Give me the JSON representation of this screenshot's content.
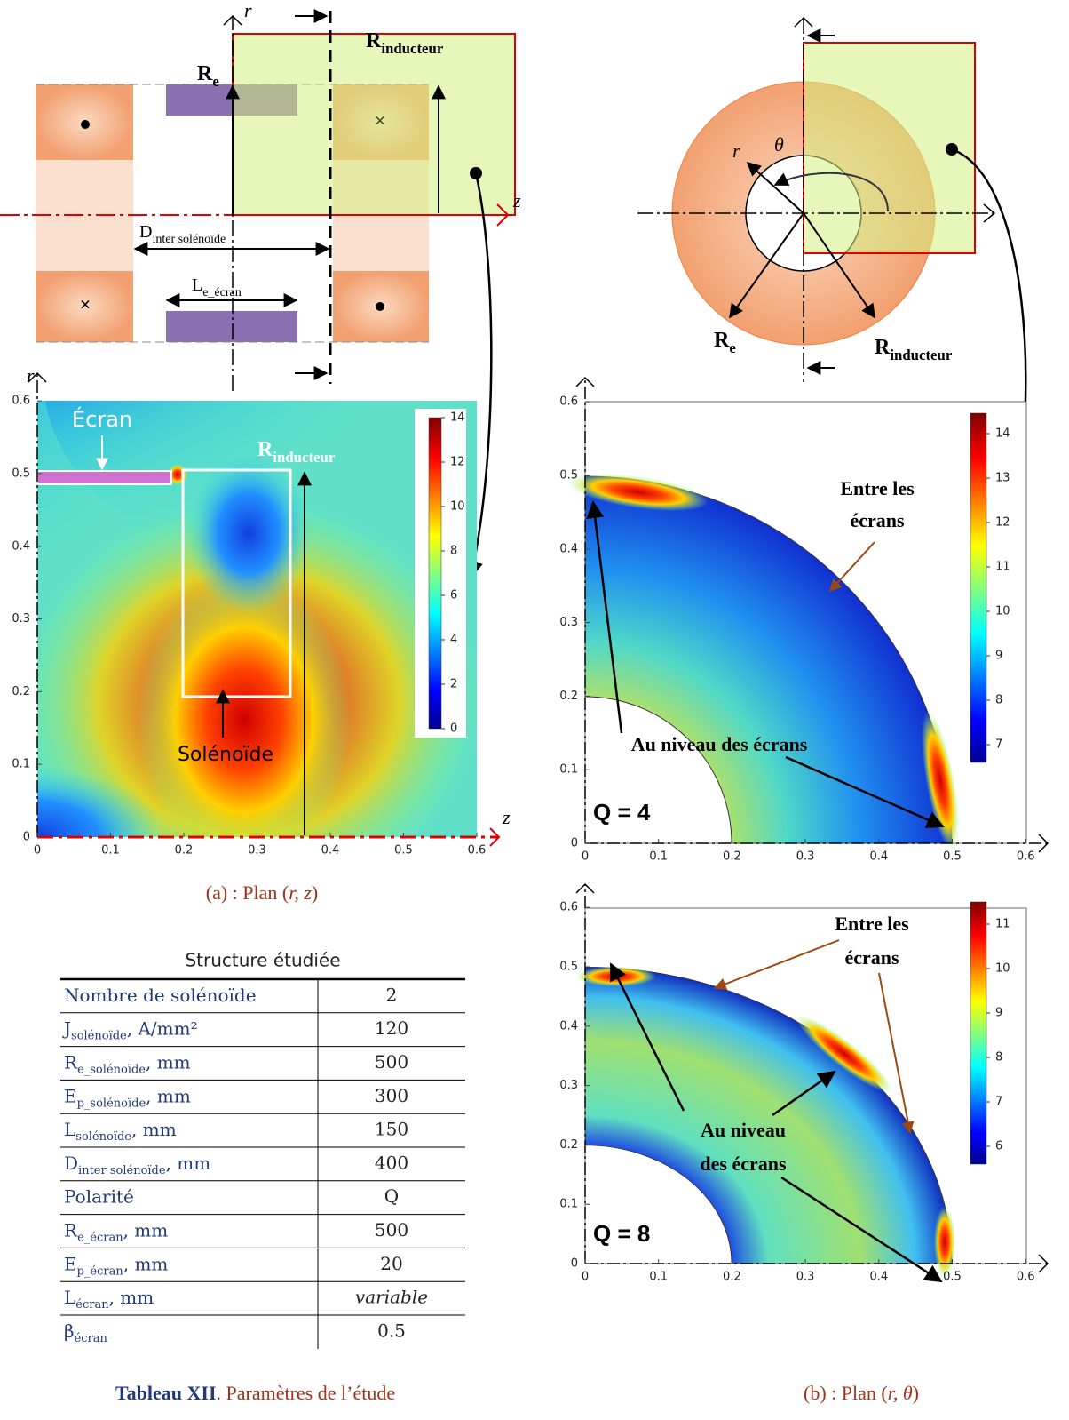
{
  "schema_rz": {
    "axis_r": "r",
    "axis_z": "z",
    "r_e": {
      "main": "R",
      "sub": "e"
    },
    "r_inducteur": {
      "main": "R",
      "sub": "inducteur"
    },
    "d_inter": {
      "main": "D",
      "sub": "inter solénoïde"
    },
    "l_ecran": {
      "main": "L",
      "sub": "e_écran"
    }
  },
  "schema_rtheta": {
    "axis_r": "r",
    "axis_theta": "θ",
    "r_e": {
      "main": "R",
      "sub": "e"
    },
    "r_inducteur": {
      "main": "R",
      "sub": "inducteur"
    }
  },
  "plot_rz": {
    "axis_r": "r",
    "axis_z": "z",
    "xticks": [
      0,
      0.1,
      0.2,
      0.3,
      0.4,
      0.5,
      0.6
    ],
    "yticks": [
      0,
      0.1,
      0.2,
      0.3,
      0.4,
      0.5,
      0.6
    ],
    "colorbar_ticks": [
      0,
      2,
      4,
      6,
      8,
      10,
      12,
      14
    ],
    "ecran": "Écran",
    "r_inducteur": {
      "main": "R",
      "sub": "inducteur"
    },
    "solenoide": "Solénoïde",
    "caption": {
      "pre": "(a) : Plan (",
      "it": "r, z",
      "post": ")"
    }
  },
  "plot_q4": {
    "label": "Q = 4",
    "xticks": [
      0,
      0.1,
      0.2,
      0.3,
      0.4,
      0.5,
      0.6
    ],
    "yticks": [
      0,
      0.1,
      0.2,
      0.3,
      0.4,
      0.5,
      0.6
    ],
    "colorbar_ticks": [
      7,
      8,
      9,
      10,
      11,
      12,
      13,
      14
    ],
    "entre": [
      "Entre les",
      "écrans"
    ],
    "niveau": [
      "Au niveau des écrans"
    ]
  },
  "plot_q8": {
    "label": "Q = 8",
    "xticks": [
      0,
      0.1,
      0.2,
      0.3,
      0.4,
      0.5,
      0.6
    ],
    "yticks": [
      0,
      0.1,
      0.2,
      0.3,
      0.4,
      0.5,
      0.6
    ],
    "colorbar_ticks": [
      6,
      7,
      8,
      9,
      10,
      11
    ],
    "entre": [
      "Entre les",
      "écrans"
    ],
    "niveau": [
      "Au niveau",
      "des écrans"
    ]
  },
  "caption_b": {
    "pre": "(b) : Plan (",
    "it": "r, θ",
    "post": ")"
  },
  "table": {
    "title": "Structure étudiée",
    "rows": [
      [
        {
          "main": "Nombre de solénoïde"
        },
        2
      ],
      [
        {
          "main": "J",
          "sub": "solénoïde",
          "unit": ", A/mm²"
        },
        120
      ],
      [
        {
          "main": "R",
          "sub": "e_solénoïde",
          "unit": ", mm"
        },
        500
      ],
      [
        {
          "main": "E",
          "sub": "p_solénoïde",
          "unit": ", mm"
        },
        300
      ],
      [
        {
          "main": "L",
          "sub": "solénoïde",
          "unit": ", mm"
        },
        150
      ],
      [
        {
          "main": "D",
          "sub": "inter solénoïde",
          "unit": ", mm"
        },
        400
      ],
      [
        {
          "main": "Polarité"
        },
        "Q"
      ],
      [
        {
          "main": "R",
          "sub": "e_écran",
          "unit": ", mm"
        },
        500
      ],
      [
        {
          "main": "E",
          "sub": "p_écran",
          "unit": ", mm"
        },
        20
      ],
      [
        {
          "main": "L",
          "sub": "écran",
          "unit": ", mm"
        },
        "variable"
      ],
      [
        {
          "main": "β",
          "sub": "écran"
        },
        0.5
      ]
    ],
    "caption": {
      "bold": "Tableau XII",
      "rest": ". Paramètres de l’étude"
    }
  }
}
